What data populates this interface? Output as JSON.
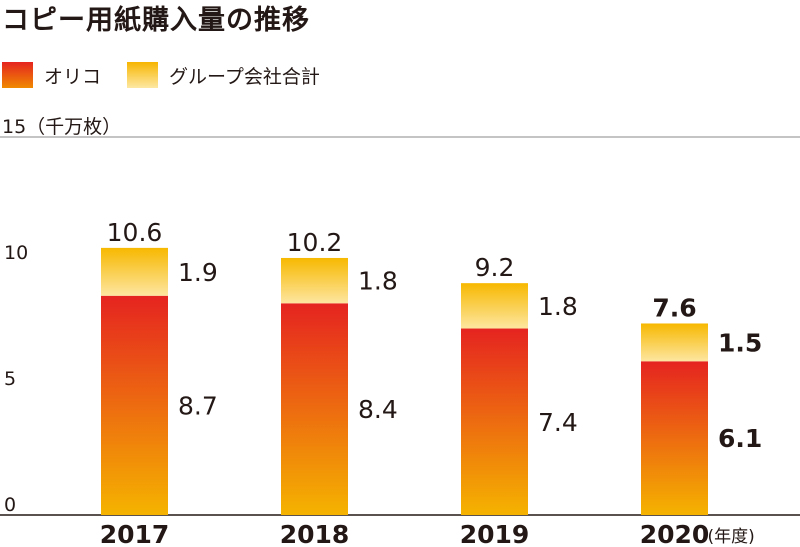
{
  "title": "コピー用紙購入量の推移",
  "legend": [
    {
      "label": "オリコ",
      "swatch": "orico"
    },
    {
      "label": "グループ会社合計",
      "swatch": "group"
    }
  ],
  "unit_label": "15（千万枚）",
  "year_unit": "(年度)",
  "colors": {
    "orico_top": "#e52420",
    "orico_bottom": "#f5b300",
    "group_top": "#f7b800",
    "group_bottom": "#fde6a0",
    "axis": "#231815"
  },
  "chart_data": {
    "type": "bar",
    "stacked": true,
    "categories": [
      "2017",
      "2018",
      "2019",
      "2020"
    ],
    "series": [
      {
        "name": "オリコ",
        "values": [
          8.7,
          8.4,
          7.4,
          6.1
        ]
      },
      {
        "name": "グループ会社合計",
        "values": [
          1.9,
          1.8,
          1.8,
          1.5
        ]
      }
    ],
    "totals": [
      10.6,
      10.2,
      9.2,
      7.6
    ],
    "value_labels": {
      "orico": [
        "8.7",
        "8.4",
        "7.4",
        "6.1"
      ],
      "group": [
        "1.9",
        "1.8",
        "1.8",
        "1.5"
      ],
      "total": [
        "10.6",
        "10.2",
        "9.2",
        "7.6"
      ]
    },
    "bold_category": "2020",
    "ylim": [
      0,
      15
    ],
    "yticks": [
      "0",
      "5",
      "10"
    ],
    "title": "コピー用紙購入量の推移",
    "ylabel": "15（千万枚）",
    "xlabel": "(年度)"
  }
}
